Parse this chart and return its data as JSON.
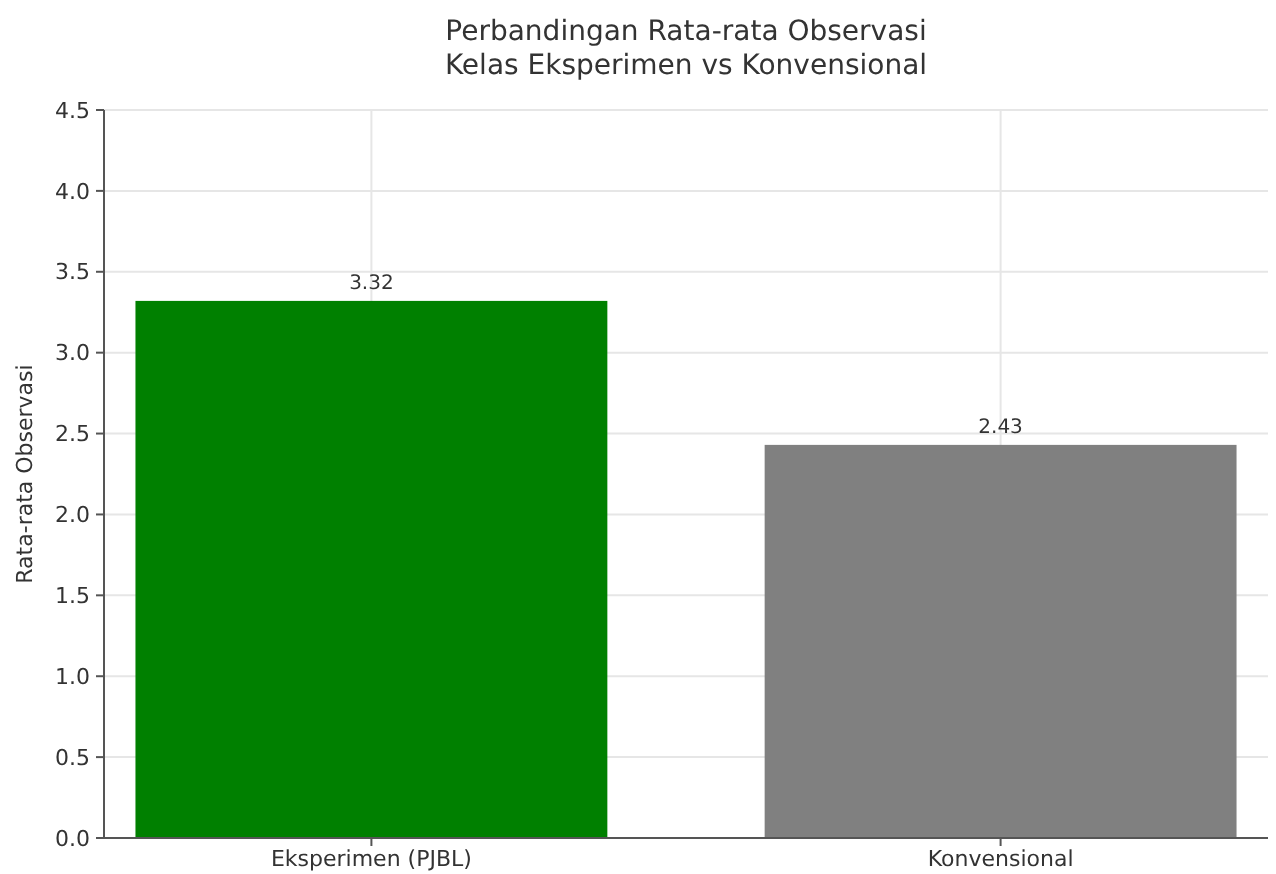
{
  "chart_data": {
    "type": "bar",
    "title": "Perbandingan Rata-rata Observasi\nKelas Eksperimen vs Konvensional",
    "ylabel": "Rata-rata Observasi",
    "categories": [
      "Eksperimen (PJBL)",
      "Konvensional"
    ],
    "values": [
      3.32,
      2.43
    ],
    "colors": [
      "#008000",
      "#808080"
    ],
    "ylim": [
      0,
      4.5
    ],
    "yticks": [
      {
        "value": 0,
        "label": "0.0"
      },
      0.5,
      {
        "value": 1,
        "label": "1.0"
      },
      1.5,
      {
        "value": 2,
        "label": "2.0"
      },
      2.5,
      {
        "value": 3,
        "label": "3.0"
      },
      3.5,
      {
        "value": 4,
        "label": "4.0"
      },
      4.5
    ],
    "grid": true,
    "data_labels": true
  }
}
